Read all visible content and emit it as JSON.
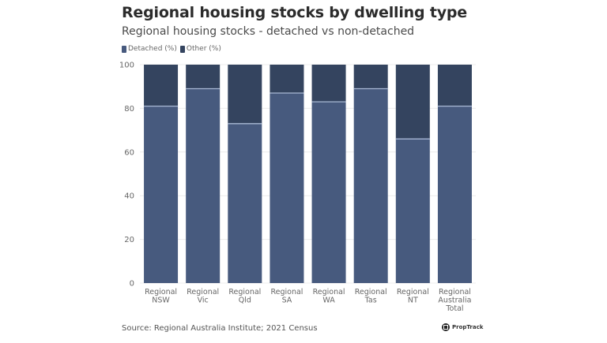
{
  "chart_data": {
    "type": "bar",
    "stacked": true,
    "title": "Regional housing stocks by dwelling type",
    "subtitle": "Regional housing stocks - detached vs non-detached",
    "categories": [
      [
        "Regional",
        "NSW"
      ],
      [
        "Regional",
        "Vic"
      ],
      [
        "Regional",
        "Qld"
      ],
      [
        "Regional",
        "SA"
      ],
      [
        "Regional",
        "WA"
      ],
      [
        "Regional",
        "Tas"
      ],
      [
        "Regional",
        "NT"
      ],
      [
        "Regional",
        "Australia",
        "Total"
      ]
    ],
    "series": [
      {
        "name": "Detached (%)",
        "color": "#475a7e",
        "values": [
          81,
          89,
          73,
          87,
          83,
          89,
          66,
          81
        ]
      },
      {
        "name": "Other (%)",
        "color": "#34445f",
        "values": [
          19,
          11,
          27,
          13,
          17,
          11,
          34,
          19
        ]
      }
    ],
    "xlabel": "",
    "ylabel": "",
    "ylim": [
      0,
      100
    ],
    "yticks": [
      0,
      20,
      40,
      60,
      80,
      100
    ],
    "grid": true,
    "legend_position": "top-left",
    "source": "Source: Regional Australia Institute; 2021 Census",
    "brand": "PropTrack"
  }
}
